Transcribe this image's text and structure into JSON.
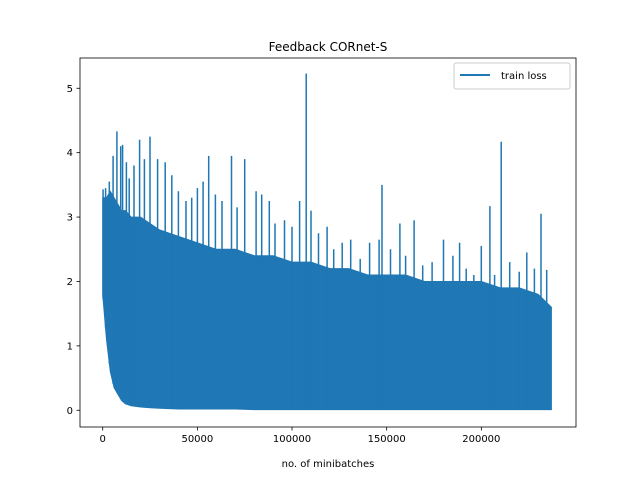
{
  "chart_data": {
    "type": "line",
    "title": "Feedback CORnet-S",
    "xlabel": "no. of minibatches",
    "ylabel": "",
    "xlim": [
      -12000,
      250000
    ],
    "ylim": [
      -0.26,
      5.47
    ],
    "xticks": [
      0,
      50000,
      100000,
      150000,
      200000
    ],
    "yticks": [
      0,
      1,
      2,
      3,
      4,
      5
    ],
    "grid": false,
    "legend": {
      "placement": "top-right",
      "entries": [
        "train loss"
      ]
    },
    "color": "#1f77b4",
    "series": [
      {
        "name": "train loss",
        "envelope_x": [
          0,
          2000,
          4000,
          6000,
          8000,
          10000,
          12000,
          15000,
          20000,
          25000,
          30000,
          40000,
          50000,
          60000,
          70000,
          80000,
          90000,
          100000,
          110000,
          120000,
          130000,
          140000,
          150000,
          160000,
          170000,
          180000,
          190000,
          200000,
          210000,
          220000,
          230000,
          237000
        ],
        "envelope_low": [
          1.8,
          1.1,
          0.6,
          0.35,
          0.25,
          0.15,
          0.1,
          0.07,
          0.05,
          0.04,
          0.03,
          0.02,
          0.02,
          0.02,
          0.02,
          0.01,
          0.01,
          0.01,
          0.01,
          0.01,
          0.01,
          0.01,
          0.01,
          0.01,
          0.01,
          0.01,
          0.01,
          0.01,
          0.01,
          0.01,
          0.01,
          0.01
        ],
        "envelope_high": [
          3.3,
          3.3,
          3.4,
          3.3,
          3.2,
          3.1,
          3.1,
          3.0,
          3.0,
          2.9,
          2.8,
          2.7,
          2.6,
          2.5,
          2.5,
          2.4,
          2.4,
          2.3,
          2.3,
          2.2,
          2.2,
          2.1,
          2.1,
          2.1,
          2.0,
          2.0,
          2.0,
          2.0,
          1.9,
          1.9,
          1.8,
          1.6
        ],
        "spikes": [
          [
            200,
            3.43
          ],
          [
            1500,
            3.45
          ],
          [
            3500,
            3.55
          ],
          [
            5500,
            3.95
          ],
          [
            7500,
            4.33
          ],
          [
            9500,
            4.1
          ],
          [
            10500,
            4.12
          ],
          [
            12500,
            3.85
          ],
          [
            14000,
            3.6
          ],
          [
            16500,
            3.8
          ],
          [
            19500,
            4.2
          ],
          [
            22000,
            3.9
          ],
          [
            25000,
            4.25
          ],
          [
            29000,
            3.9
          ],
          [
            33000,
            3.85
          ],
          [
            36500,
            3.65
          ],
          [
            40000,
            3.4
          ],
          [
            44000,
            3.25
          ],
          [
            47000,
            3.3
          ],
          [
            50000,
            3.45
          ],
          [
            53000,
            3.55
          ],
          [
            56000,
            3.95
          ],
          [
            59500,
            3.35
          ],
          [
            63000,
            3.25
          ],
          [
            68000,
            3.95
          ],
          [
            71000,
            3.15
          ],
          [
            75000,
            3.9
          ],
          [
            81000,
            3.4
          ],
          [
            84000,
            3.35
          ],
          [
            88000,
            3.25
          ],
          [
            91000,
            2.9
          ],
          [
            96000,
            2.95
          ],
          [
            100000,
            2.85
          ],
          [
            104000,
            3.25
          ],
          [
            107500,
            5.23
          ],
          [
            110000,
            3.1
          ],
          [
            114000,
            2.75
          ],
          [
            118500,
            2.85
          ],
          [
            122000,
            2.5
          ],
          [
            126500,
            2.6
          ],
          [
            131000,
            2.65
          ],
          [
            136000,
            2.35
          ],
          [
            141000,
            2.6
          ],
          [
            146000,
            2.65
          ],
          [
            147500,
            3.5
          ],
          [
            152000,
            2.5
          ],
          [
            157000,
            2.9
          ],
          [
            160000,
            2.4
          ],
          [
            164500,
            2.95
          ],
          [
            169000,
            2.25
          ],
          [
            174000,
            2.3
          ],
          [
            180000,
            2.65
          ],
          [
            185000,
            2.4
          ],
          [
            188500,
            2.6
          ],
          [
            192000,
            2.2
          ],
          [
            196000,
            2.1
          ],
          [
            200000,
            2.55
          ],
          [
            204500,
            3.17
          ],
          [
            207000,
            2.1
          ],
          [
            210500,
            4.17
          ],
          [
            215000,
            2.3
          ],
          [
            220000,
            2.15
          ],
          [
            224000,
            2.45
          ],
          [
            228000,
            2.2
          ],
          [
            231500,
            3.05
          ],
          [
            234500,
            2.18
          ],
          [
            236500,
            1.6
          ]
        ]
      }
    ]
  }
}
